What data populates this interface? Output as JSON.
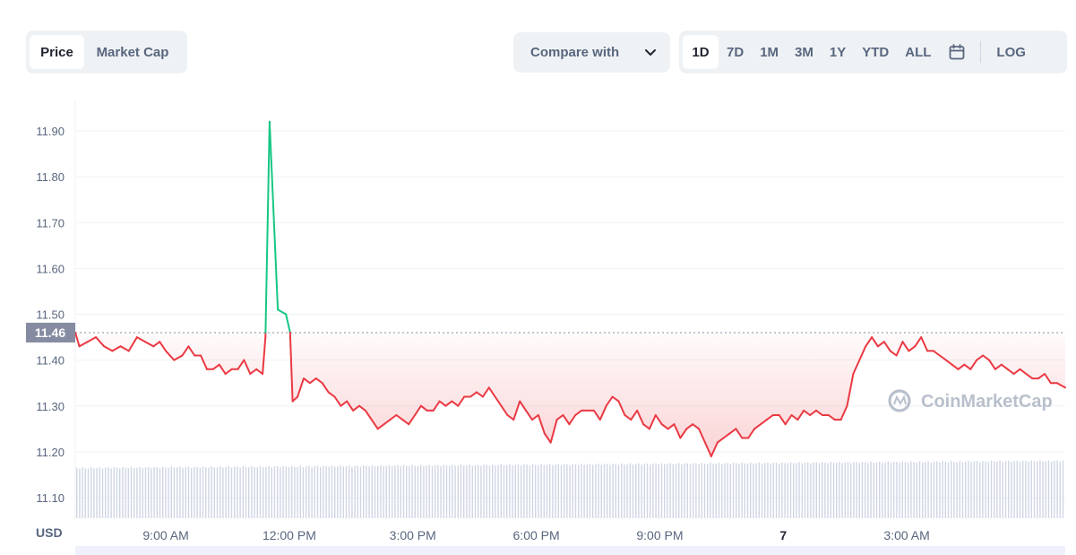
{
  "tabs": {
    "price": "Price",
    "market_cap": "Market Cap",
    "active": "price"
  },
  "compare": {
    "label": "Compare with",
    "icon": "chevron-down-icon"
  },
  "ranges": [
    "1D",
    "7D",
    "1M",
    "3M",
    "1Y",
    "YTD",
    "ALL"
  ],
  "active_range": "1D",
  "calendar_icon": "calendar-icon",
  "log_label": "LOG",
  "watermark": "CoinMarketCap",
  "colors": {
    "up": "#16c784",
    "down": "#ea3943",
    "grid": "#eff2f5",
    "current_label_bg": "#858ca2",
    "volume": "#cfd6e4"
  },
  "chart_data": {
    "type": "line",
    "unit_label": "USD",
    "y_ticks": [
      "11.10",
      "11.20",
      "11.30",
      "11.40",
      "11.50",
      "11.60",
      "11.70",
      "11.80",
      "11.90"
    ],
    "ylim": [
      11.0,
      11.98
    ],
    "current_price": "11.46",
    "current_value": 11.46,
    "x_tick_labels": [
      {
        "label": "9:00 AM",
        "t": 9,
        "bold": false
      },
      {
        "label": "12:00 PM",
        "t": 12,
        "bold": false
      },
      {
        "label": "3:00 PM",
        "t": 15,
        "bold": false
      },
      {
        "label": "6:00 PM",
        "t": 18,
        "bold": false
      },
      {
        "label": "9:00 PM",
        "t": 21,
        "bold": false
      },
      {
        "label": "7",
        "t": 24,
        "bold": true
      },
      {
        "label": "3:00 AM",
        "t": 27,
        "bold": false
      }
    ],
    "xlim": [
      6.8,
      30.85
    ],
    "grid": true,
    "series": [
      {
        "points": [
          [
            6.8,
            11.46
          ],
          [
            6.9,
            11.43
          ],
          [
            7.1,
            11.44
          ],
          [
            7.3,
            11.45
          ],
          [
            7.5,
            11.43
          ],
          [
            7.7,
            11.42
          ],
          [
            7.9,
            11.43
          ],
          [
            8.1,
            11.42
          ],
          [
            8.3,
            11.45
          ],
          [
            8.5,
            11.44
          ],
          [
            8.7,
            11.43
          ],
          [
            8.85,
            11.44
          ],
          [
            9.0,
            11.42
          ],
          [
            9.2,
            11.4
          ],
          [
            9.4,
            11.41
          ],
          [
            9.55,
            11.43
          ],
          [
            9.7,
            11.41
          ],
          [
            9.85,
            11.41
          ],
          [
            10.0,
            11.38
          ],
          [
            10.15,
            11.38
          ],
          [
            10.3,
            11.39
          ],
          [
            10.45,
            11.37
          ],
          [
            10.6,
            11.38
          ],
          [
            10.75,
            11.38
          ],
          [
            10.9,
            11.4
          ],
          [
            11.05,
            11.37
          ],
          [
            11.2,
            11.38
          ],
          [
            11.35,
            11.37
          ],
          [
            11.42,
            11.45
          ],
          [
            11.52,
            11.92
          ],
          [
            11.72,
            11.51
          ],
          [
            11.92,
            11.5
          ],
          [
            12.02,
            11.46
          ],
          [
            12.08,
            11.31
          ],
          [
            12.2,
            11.32
          ],
          [
            12.35,
            11.36
          ],
          [
            12.5,
            11.35
          ],
          [
            12.65,
            11.36
          ],
          [
            12.8,
            11.35
          ],
          [
            12.95,
            11.33
          ],
          [
            13.1,
            11.32
          ],
          [
            13.25,
            11.3
          ],
          [
            13.4,
            11.31
          ],
          [
            13.55,
            11.29
          ],
          [
            13.7,
            11.3
          ],
          [
            13.85,
            11.29
          ],
          [
            14.0,
            11.27
          ],
          [
            14.15,
            11.25
          ],
          [
            14.3,
            11.26
          ],
          [
            14.45,
            11.27
          ],
          [
            14.6,
            11.28
          ],
          [
            14.75,
            11.27
          ],
          [
            14.9,
            11.26
          ],
          [
            15.05,
            11.28
          ],
          [
            15.2,
            11.3
          ],
          [
            15.35,
            11.29
          ],
          [
            15.5,
            11.29
          ],
          [
            15.65,
            11.31
          ],
          [
            15.8,
            11.3
          ],
          [
            15.95,
            11.31
          ],
          [
            16.1,
            11.3
          ],
          [
            16.25,
            11.32
          ],
          [
            16.4,
            11.32
          ],
          [
            16.55,
            11.33
          ],
          [
            16.7,
            11.32
          ],
          [
            16.85,
            11.34
          ],
          [
            17.0,
            11.32
          ],
          [
            17.15,
            11.3
          ],
          [
            17.3,
            11.28
          ],
          [
            17.45,
            11.27
          ],
          [
            17.6,
            11.31
          ],
          [
            17.75,
            11.29
          ],
          [
            17.9,
            11.27
          ],
          [
            18.05,
            11.28
          ],
          [
            18.2,
            11.24
          ],
          [
            18.35,
            11.22
          ],
          [
            18.5,
            11.27
          ],
          [
            18.65,
            11.28
          ],
          [
            18.8,
            11.26
          ],
          [
            18.95,
            11.28
          ],
          [
            19.1,
            11.29
          ],
          [
            19.25,
            11.29
          ],
          [
            19.4,
            11.29
          ],
          [
            19.55,
            11.27
          ],
          [
            19.7,
            11.3
          ],
          [
            19.85,
            11.32
          ],
          [
            20.0,
            11.31
          ],
          [
            20.15,
            11.28
          ],
          [
            20.3,
            11.27
          ],
          [
            20.45,
            11.29
          ],
          [
            20.6,
            11.26
          ],
          [
            20.75,
            11.25
          ],
          [
            20.9,
            11.28
          ],
          [
            21.05,
            11.26
          ],
          [
            21.2,
            11.25
          ],
          [
            21.35,
            11.26
          ],
          [
            21.5,
            11.23
          ],
          [
            21.65,
            11.25
          ],
          [
            21.8,
            11.26
          ],
          [
            21.95,
            11.25
          ],
          [
            22.1,
            11.22
          ],
          [
            22.25,
            11.19
          ],
          [
            22.4,
            11.22
          ],
          [
            22.55,
            11.23
          ],
          [
            22.7,
            11.24
          ],
          [
            22.85,
            11.25
          ],
          [
            23.0,
            11.23
          ],
          [
            23.15,
            11.23
          ],
          [
            23.3,
            11.25
          ],
          [
            23.45,
            11.26
          ],
          [
            23.6,
            11.27
          ],
          [
            23.75,
            11.28
          ],
          [
            23.9,
            11.28
          ],
          [
            24.05,
            11.26
          ],
          [
            24.2,
            11.28
          ],
          [
            24.35,
            11.27
          ],
          [
            24.5,
            11.29
          ],
          [
            24.65,
            11.28
          ],
          [
            24.8,
            11.29
          ],
          [
            24.95,
            11.28
          ],
          [
            25.1,
            11.28
          ],
          [
            25.25,
            11.27
          ],
          [
            25.4,
            11.27
          ],
          [
            25.55,
            11.3
          ],
          [
            25.7,
            11.37
          ],
          [
            25.85,
            11.4
          ],
          [
            26.0,
            11.43
          ],
          [
            26.15,
            11.45
          ],
          [
            26.3,
            11.43
          ],
          [
            26.45,
            11.44
          ],
          [
            26.6,
            11.42
          ],
          [
            26.75,
            11.41
          ],
          [
            26.9,
            11.44
          ],
          [
            27.05,
            11.42
          ],
          [
            27.2,
            11.43
          ],
          [
            27.35,
            11.45
          ],
          [
            27.5,
            11.42
          ],
          [
            27.65,
            11.42
          ],
          [
            27.8,
            11.41
          ],
          [
            27.95,
            11.4
          ],
          [
            28.1,
            11.39
          ],
          [
            28.25,
            11.38
          ],
          [
            28.4,
            11.39
          ],
          [
            28.55,
            11.38
          ],
          [
            28.7,
            11.4
          ],
          [
            28.85,
            11.41
          ],
          [
            29.0,
            11.4
          ],
          [
            29.15,
            11.38
          ],
          [
            29.3,
            11.39
          ],
          [
            29.45,
            11.38
          ],
          [
            29.6,
            11.37
          ],
          [
            29.75,
            11.38
          ],
          [
            29.9,
            11.37
          ],
          [
            30.05,
            11.36
          ],
          [
            30.2,
            11.36
          ],
          [
            30.35,
            11.37
          ],
          [
            30.5,
            11.35
          ],
          [
            30.65,
            11.35
          ],
          [
            30.85,
            11.34
          ]
        ]
      }
    ]
  }
}
